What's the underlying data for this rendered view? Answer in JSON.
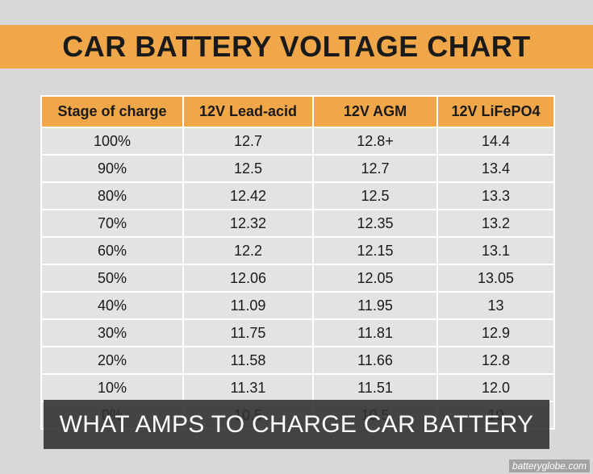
{
  "title": "CAR BATTERY VOLTAGE CHART",
  "table": {
    "headers": [
      "Stage of charge",
      "12V Lead-acid",
      "12V AGM",
      "12V LiFePO4"
    ],
    "rows": [
      [
        "100%",
        "12.7",
        "12.8+",
        "14.4"
      ],
      [
        "90%",
        "12.5",
        "12.7",
        "13.4"
      ],
      [
        "80%",
        "12.42",
        "12.5",
        "13.3"
      ],
      [
        "70%",
        "12.32",
        "12.35",
        "13.2"
      ],
      [
        "60%",
        "12.2",
        "12.15",
        "13.1"
      ],
      [
        "50%",
        "12.06",
        "12.05",
        "13.05"
      ],
      [
        "40%",
        "11.09",
        "11.95",
        "13"
      ],
      [
        "30%",
        "11.75",
        "11.81",
        "12.9"
      ],
      [
        "20%",
        "11.58",
        "11.66",
        "12.8"
      ],
      [
        "10%",
        "11.31",
        "11.51",
        "12.0"
      ],
      [
        "0%",
        "10.5",
        "10.5",
        "10"
      ]
    ]
  },
  "overlay_caption": "WHAT AMPS TO CHARGE CAR BATTERY",
  "watermark": "batteryglobe.com",
  "colors": {
    "accent": "#f0a74a",
    "background": "#d8d8d8",
    "cell": "#e3e3e3"
  }
}
